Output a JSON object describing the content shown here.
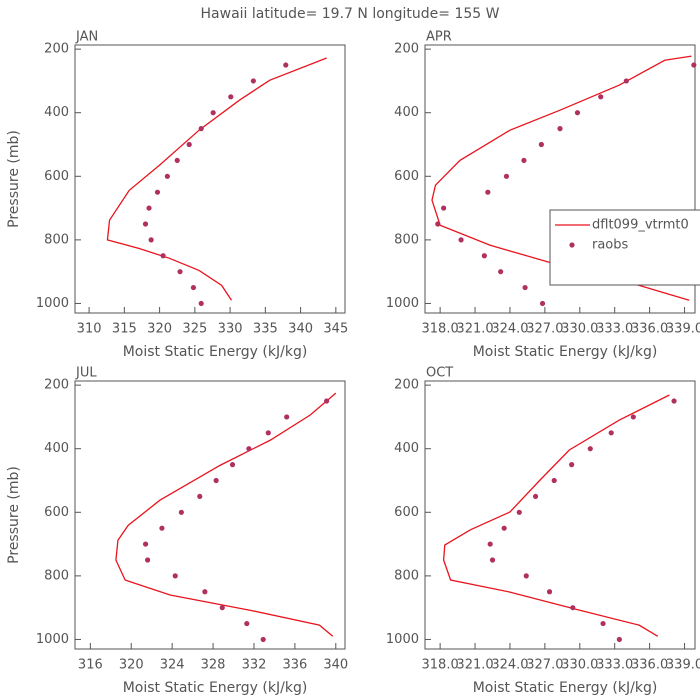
{
  "title": "Hawaii  latitude= 19.7 N longitude= 155 W",
  "chart_data": [
    {
      "type": "line",
      "label": "JAN",
      "x_label": "Moist Static Energy (kJ/kg)",
      "y_label": "Pressure (mb)",
      "xlim": [
        308,
        346.3
      ],
      "xticks": [
        310,
        315,
        320,
        325,
        330,
        335,
        340,
        345
      ],
      "ylim": [
        1030,
        187
      ],
      "yticks": [
        200,
        400,
        600,
        800,
        1000
      ],
      "series": [
        {
          "name": "dflt099_vtrmt0",
          "color": "#e8141e",
          "mode": "line",
          "x": [
            330.2,
            328.8,
            325.6,
            321.4,
            317.1,
            312.6,
            312.9,
            315.7,
            320,
            325.6,
            331.3,
            335.6,
            343.7
          ],
          "values": [
            990,
            943,
            896,
            858,
            827,
            800,
            738,
            644,
            565,
            455,
            361,
            298,
            228
          ]
        },
        {
          "name": "raobs",
          "color": "#b03060",
          "mode": "markers",
          "x": [
            337.9,
            333.3,
            330.1,
            327.6,
            325.9,
            324.2,
            322.5,
            321.1,
            319.7,
            318.5,
            318.0,
            318.8,
            320.5,
            322.9,
            324.8,
            325.9
          ],
          "values": [
            250,
            300,
            350,
            400,
            450,
            500,
            550,
            600,
            650,
            700,
            750,
            800,
            850,
            900,
            950,
            1000
          ]
        }
      ]
    },
    {
      "type": "line",
      "label": "APR",
      "x_label": "Moist Static Energy (kJ/kg)",
      "legend": "right",
      "xlim": [
        316.7,
        339.9
      ],
      "xticks": [
        {
          "value": 318,
          "label": "318.0"
        },
        {
          "value": 321,
          "label": "321.0"
        },
        {
          "value": 324,
          "label": "324.0"
        },
        {
          "value": 327,
          "label": "327.0"
        },
        {
          "value": 330,
          "label": "330.0"
        },
        {
          "value": 333,
          "label": "333.0"
        },
        {
          "value": 336,
          "label": "336.0"
        },
        {
          "value": 339,
          "label": "339.0"
        }
      ],
      "ylim": [
        1030,
        187
      ],
      "yticks": [
        200,
        400,
        600,
        800,
        1000
      ],
      "series": [
        {
          "name": "dflt099_vtrmt0",
          "color": "#e8141e",
          "mode": "line",
          "x": [
            339.4,
            335.1,
            328.3,
            322.3,
            318,
            317.3,
            317.6,
            319.7,
            324,
            328.3,
            333.4,
            337.3,
            339.6
          ],
          "values": [
            990,
            943,
            880,
            817,
            754,
            675,
            628,
            550,
            455,
            392,
            313,
            235,
            222
          ]
        },
        {
          "name": "raobs",
          "color": "#b03060",
          "mode": "markers",
          "x": [
            339.8,
            334,
            331.8,
            329.8,
            328.3,
            326.7,
            325.2,
            323.7,
            322.1,
            318.3,
            317.8,
            319.8,
            321.8,
            323.2,
            325.3,
            326.8
          ],
          "values": [
            250,
            300,
            350,
            400,
            450,
            500,
            550,
            600,
            650,
            700,
            750,
            800,
            850,
            900,
            950,
            1000
          ]
        }
      ]
    },
    {
      "type": "line",
      "label": "JUL",
      "x_label": "Moist Static Energy (kJ/kg)",
      "y_label": "Pressure (mb)",
      "xlim": [
        314.5,
        340.9
      ],
      "xticks": [
        316,
        320,
        324,
        328,
        332,
        336,
        340
      ],
      "ylim": [
        1030,
        187
      ],
      "yticks": [
        200,
        400,
        600,
        800,
        1000
      ],
      "series": [
        {
          "name": "dflt099_vtrmt0",
          "color": "#e8141e",
          "mode": "line",
          "x": [
            339.7,
            338.4,
            331.6,
            323.8,
            319.4,
            318.5,
            318.7,
            319.7,
            322.8,
            328.7,
            333.6,
            337.5,
            340
          ],
          "values": [
            990,
            955,
            908,
            860,
            813,
            750,
            688,
            641,
            562,
            452,
            373,
            294,
            225
          ]
        },
        {
          "name": "raobs",
          "color": "#b03060",
          "mode": "markers",
          "x": [
            339.1,
            335.2,
            333.4,
            331.5,
            329.9,
            328.3,
            326.7,
            324.9,
            323,
            321.4,
            321.6,
            324.3,
            327.2,
            328.9,
            331.3,
            332.9
          ],
          "values": [
            250,
            300,
            350,
            400,
            450,
            500,
            550,
            600,
            650,
            700,
            750,
            800,
            850,
            900,
            950,
            1000
          ]
        }
      ]
    },
    {
      "type": "line",
      "label": "OCT",
      "x_label": "Moist Static Energy (kJ/kg)",
      "xlim": [
        316.7,
        339.9
      ],
      "xticks": [
        {
          "value": 318,
          "label": "318.0"
        },
        {
          "value": 321,
          "label": "321.0"
        },
        {
          "value": 324,
          "label": "324.0"
        },
        {
          "value": 327,
          "label": "327.0"
        },
        {
          "value": 330,
          "label": "330.0"
        },
        {
          "value": 333,
          "label": "333.0"
        },
        {
          "value": 336,
          "label": "336.0"
        },
        {
          "value": 339,
          "label": "339.0"
        }
      ],
      "ylim": [
        1030,
        187
      ],
      "yticks": [
        200,
        400,
        600,
        800,
        1000
      ],
      "series": [
        {
          "name": "dflt099_vtrmt0",
          "color": "#e8141e",
          "mode": "line",
          "x": [
            336.7,
            335.1,
            330,
            324,
            318.9,
            318.3,
            318.4,
            320.6,
            324,
            326.6,
            329.1,
            333.4,
            337.7
          ],
          "values": [
            990,
            955,
            908,
            851,
            813,
            750,
            703,
            655,
            599,
            498,
            404,
            310,
            231
          ]
        },
        {
          "name": "raobs",
          "color": "#b03060",
          "mode": "markers",
          "x": [
            338.1,
            334.6,
            332.7,
            330.9,
            329.3,
            327.8,
            326.2,
            324.8,
            323.5,
            322.3,
            322.5,
            325.4,
            327.4,
            329.4,
            332,
            333.4
          ],
          "values": [
            250,
            300,
            350,
            400,
            450,
            500,
            550,
            600,
            650,
            700,
            750,
            800,
            850,
            900,
            950,
            1000
          ]
        }
      ]
    }
  ]
}
